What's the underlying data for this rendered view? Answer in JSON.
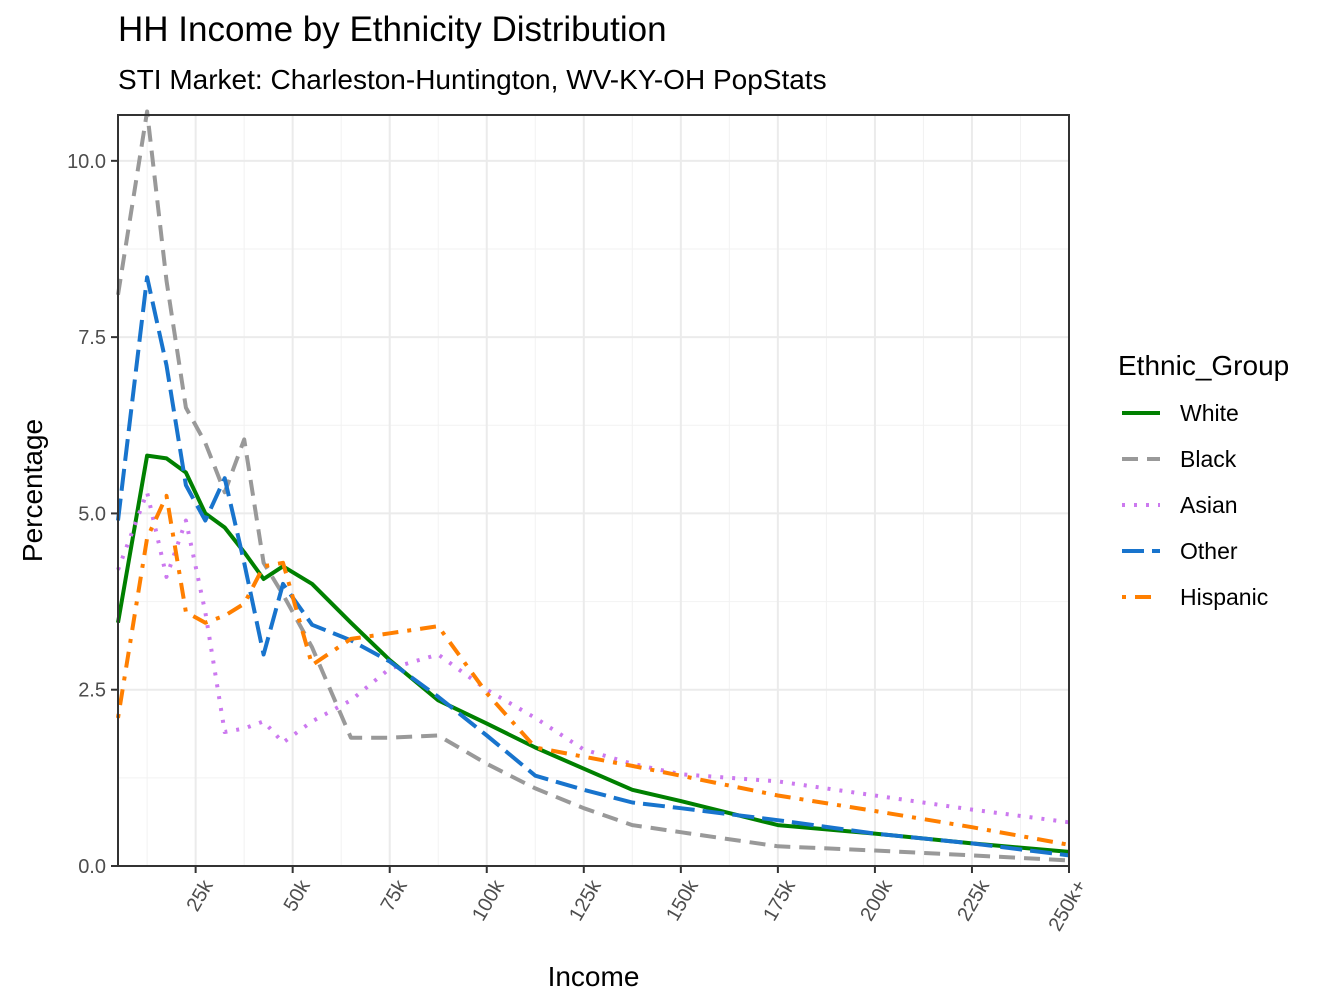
{
  "chart_data": {
    "type": "line",
    "title": "HH Income by Ethnicity Distribution",
    "subtitle": "STI Market: Charleston-Huntington, WV-KY-OH PopStats",
    "xlabel": "Income",
    "ylabel": "Percentage",
    "x_tick_labels": [
      "25k",
      "50k",
      "75k",
      "100k",
      "125k",
      "150k",
      "175k",
      "200k",
      "225k",
      "250k+"
    ],
    "x_tick_values": [
      25,
      50,
      75,
      100,
      125,
      150,
      175,
      200,
      225,
      250
    ],
    "y_tick_labels": [
      "0.0",
      "2.5",
      "5.0",
      "7.5",
      "10.0"
    ],
    "y_tick_values": [
      0,
      2.5,
      5,
      7.5,
      10
    ],
    "xlim": [
      5,
      250
    ],
    "ylim": [
      0,
      10.65
    ],
    "grid": true,
    "legend_position": "right",
    "legend_title": "Ethnic_Group",
    "x": [
      5,
      12.5,
      17.5,
      22.5,
      27.5,
      32.5,
      37.5,
      42.5,
      47.5,
      55,
      65,
      75,
      87.5,
      100,
      112.5,
      125,
      137.5,
      150,
      175,
      200,
      225,
      250
    ],
    "series": [
      {
        "name": "White",
        "color": "#008000",
        "dash": "solid",
        "values": [
          3.45,
          5.82,
          5.78,
          5.58,
          5.0,
          4.8,
          4.45,
          4.07,
          4.25,
          4.0,
          3.45,
          2.92,
          2.35,
          2.02,
          1.68,
          1.38,
          1.08,
          0.92,
          0.58,
          0.46,
          0.32,
          0.2
        ]
      },
      {
        "name": "Black",
        "color": "#999999",
        "dash": "dashed",
        "values": [
          8.1,
          10.7,
          8.3,
          6.5,
          6.0,
          5.3,
          6.05,
          4.3,
          3.85,
          3.1,
          1.82,
          1.82,
          1.85,
          1.45,
          1.1,
          0.82,
          0.58,
          0.48,
          0.28,
          0.22,
          0.15,
          0.08
        ]
      },
      {
        "name": "Asian",
        "color": "#cc79ef",
        "dash": "dotted",
        "values": [
          4.2,
          5.3,
          4.1,
          4.9,
          3.6,
          1.9,
          1.95,
          2.05,
          1.75,
          2.05,
          2.35,
          2.8,
          3.0,
          2.5,
          2.1,
          1.65,
          1.45,
          1.3,
          1.2,
          1.0,
          0.8,
          0.62
        ]
      },
      {
        "name": "Other",
        "color": "#1874cd",
        "dash": "longdash",
        "values": [
          4.9,
          8.35,
          7.1,
          5.4,
          4.9,
          5.5,
          4.3,
          3.0,
          4.0,
          3.42,
          3.2,
          2.9,
          2.4,
          1.85,
          1.28,
          1.08,
          0.9,
          0.82,
          0.65,
          0.46,
          0.32,
          0.15
        ]
      },
      {
        "name": "Hispanic",
        "color": "#ff7f00",
        "dash": "dotdash",
        "values": [
          2.1,
          4.65,
          5.25,
          3.6,
          3.45,
          3.55,
          3.72,
          4.25,
          4.3,
          2.85,
          3.22,
          3.3,
          3.4,
          2.45,
          1.68,
          1.55,
          1.42,
          1.28,
          1.0,
          0.78,
          0.55,
          0.3
        ]
      }
    ]
  }
}
